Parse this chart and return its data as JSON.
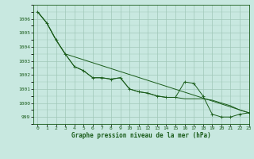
{
  "title": "Graphe pression niveau de la mer (hPa)",
  "background_color": "#c8e8e0",
  "plot_bg_color": "#c8e8e0",
  "line_color": "#1a5c1a",
  "grid_color": "#a0c8b8",
  "xlim": [
    -0.5,
    23
  ],
  "ylim": [
    998.5,
    1007.0
  ],
  "xtick_labels": [
    "0",
    "1",
    "2",
    "3",
    "4",
    "5",
    "6",
    "7",
    "8",
    "9",
    "10",
    "11",
    "12",
    "13",
    "14",
    "15",
    "16",
    "17",
    "18",
    "19",
    "20",
    "21",
    "22",
    "23"
  ],
  "yticks": [
    999,
    1000,
    1001,
    1002,
    1003,
    1004,
    1005,
    1006
  ],
  "series1_x": [
    0,
    1,
    2,
    3,
    4,
    5,
    6,
    7,
    8,
    9,
    10,
    11,
    12,
    13,
    14,
    15,
    16,
    17,
    18,
    19,
    20,
    21,
    22,
    23
  ],
  "series1_y": [
    1006.5,
    1005.7,
    1004.5,
    1003.5,
    1002.6,
    1002.3,
    1001.8,
    1001.8,
    1001.7,
    1001.8,
    1001.0,
    1000.8,
    1000.7,
    1000.5,
    1000.4,
    1000.4,
    1001.5,
    1001.4,
    1000.5,
    999.2,
    999.0,
    999.0,
    999.2,
    999.3
  ],
  "series2_x": [
    0,
    1,
    2,
    3,
    23
  ],
  "series2_y": [
    1006.5,
    1005.7,
    1004.5,
    1003.5,
    999.3
  ],
  "series3_x": [
    0,
    1,
    2,
    3,
    4,
    5,
    6,
    7,
    8,
    9,
    10,
    11,
    12,
    13,
    14,
    15,
    16,
    17,
    18,
    19,
    20,
    21,
    22,
    23
  ],
  "series3_y": [
    1006.5,
    1005.7,
    1004.5,
    1003.5,
    1002.6,
    1002.3,
    1001.8,
    1001.8,
    1001.7,
    1001.8,
    1001.0,
    1000.8,
    1000.7,
    1000.5,
    1000.4,
    1000.4,
    1000.3,
    1000.3,
    1000.3,
    1000.2,
    1000.0,
    999.8,
    999.5,
    999.3
  ]
}
